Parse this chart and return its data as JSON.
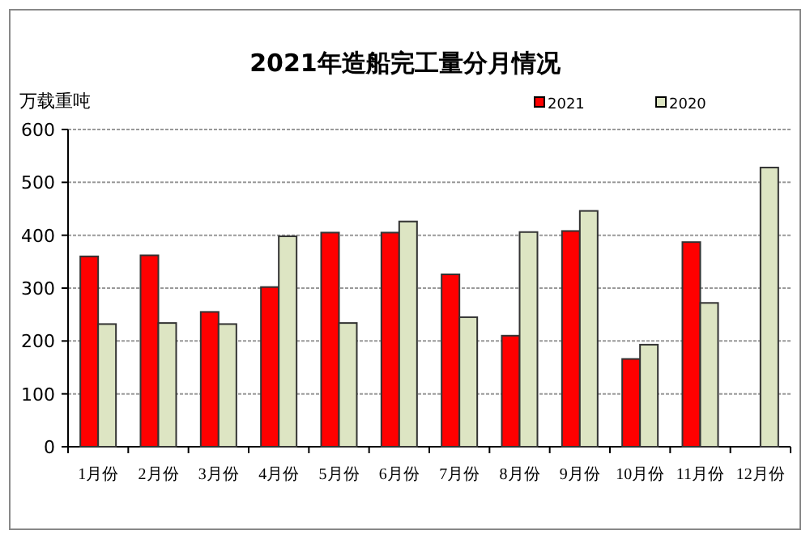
{
  "chart_data": {
    "type": "bar",
    "title": "2021年造船完工量分月情况",
    "ylabel": "万载重吨",
    "categories": [
      "1月份",
      "2月份",
      "3月份",
      "4月份",
      "5月份",
      "6月份",
      "7月份",
      "8月份",
      "9月份",
      "10月份",
      "11月份",
      "12月份"
    ],
    "series": [
      {
        "name": "2021",
        "color": "#ff0000",
        "values": [
          360,
          362,
          255,
          302,
          405,
          405,
          326,
          210,
          408,
          166,
          387,
          null
        ]
      },
      {
        "name": "2020",
        "color": "#dde5c3",
        "values": [
          232,
          234,
          232,
          398,
          234,
          426,
          245,
          406,
          446,
          193,
          272,
          528
        ]
      }
    ],
    "ylim": [
      0,
      600
    ],
    "yticks": [
      0,
      100,
      200,
      300,
      400,
      500,
      600
    ],
    "grid": "y",
    "legend": "top right"
  }
}
